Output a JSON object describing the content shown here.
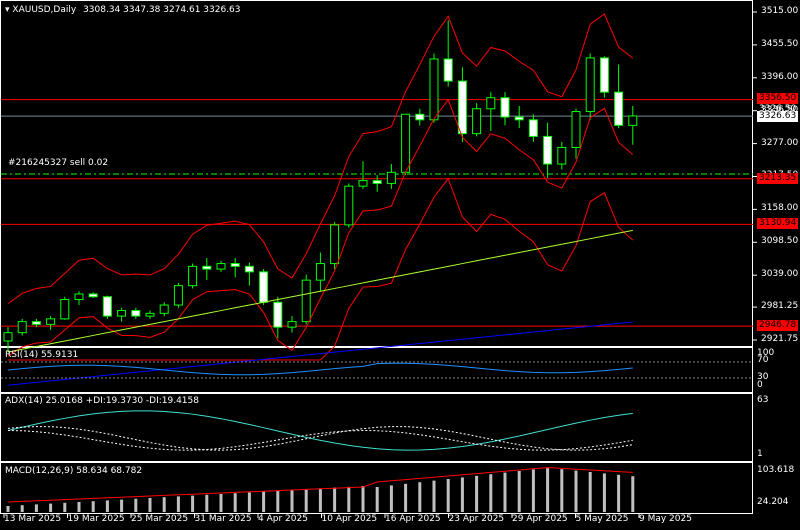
{
  "header": {
    "symbol": "XAUUSD,Daily",
    "ohlc": "3308.34 3347.38 3274.61 3326.63"
  },
  "order": {
    "label": "#216245327 sell 0.02"
  },
  "price_axis": [
    "3515.00",
    "3455.50",
    "3396.00",
    "3336.50",
    "3277.00",
    "3217.50",
    "3158.00",
    "3098.50",
    "3039.00",
    "2981.25",
    "2921.75"
  ],
  "levels": {
    "current": "3326.63",
    "r1": "3356.50",
    "r2": "3213.35",
    "r3": "3130.94",
    "r4": "2946.78",
    "current_tail": "3326.50"
  },
  "rsi": {
    "label": "RSI(14) 55.9131",
    "levels": [
      "100",
      "70",
      "30",
      "0"
    ]
  },
  "adx": {
    "label": "ADX(14) 25.0168 +DI:19.3730 -DI:19.4158",
    "top": "63",
    "bottom": "1"
  },
  "macd": {
    "label": "MACD(12,26,9) 58.634 68.782",
    "top": "103.618",
    "bottom": "24.204"
  },
  "dates": [
    "13 Mar 2025",
    "19 Mar 2025",
    "25 Mar 2025",
    "31 Mar 2025",
    "4 Apr 2025",
    "10 Apr 2025",
    "16 Apr 2025",
    "23 Apr 2025",
    "29 Apr 2025",
    "5 May 2025",
    "9 May 2025"
  ],
  "colors": {
    "up": "#00ff00",
    "down": "#ffffff",
    "band": "#ff0000",
    "ma": "#adff2f",
    "level": "#ff0000",
    "rsi": "#1e90ff",
    "adx": "#40e0d0"
  },
  "candles": [
    [
      2920,
      2945,
      2900,
      2935
    ],
    [
      2935,
      2960,
      2930,
      2955
    ],
    [
      2955,
      2960,
      2945,
      2950
    ],
    [
      2950,
      2965,
      2940,
      2960
    ],
    [
      2960,
      3000,
      2958,
      2995
    ],
    [
      2995,
      3010,
      2985,
      3005
    ],
    [
      3005,
      3008,
      2998,
      3000
    ],
    [
      3000,
      3002,
      2960,
      2965
    ],
    [
      2965,
      2980,
      2955,
      2975
    ],
    [
      2975,
      2980,
      2960,
      2965
    ],
    [
      2965,
      2975,
      2960,
      2970
    ],
    [
      2970,
      2990,
      2965,
      2985
    ],
    [
      2985,
      3025,
      2980,
      3020
    ],
    [
      3020,
      3060,
      3015,
      3055
    ],
    [
      3055,
      3070,
      3030,
      3050
    ],
    [
      3050,
      3065,
      3045,
      3060
    ],
    [
      3060,
      3070,
      3035,
      3055
    ],
    [
      3055,
      3062,
      3020,
      3045
    ],
    [
      3045,
      3050,
      2985,
      2990
    ],
    [
      2990,
      3000,
      2925,
      2945
    ],
    [
      2945,
      2965,
      2935,
      2955
    ],
    [
      2955,
      3040,
      2950,
      3030
    ],
    [
      3030,
      3080,
      3010,
      3060
    ],
    [
      3060,
      3135,
      3050,
      3130
    ],
    [
      3130,
      3205,
      3125,
      3200
    ],
    [
      3200,
      3245,
      3195,
      3210
    ],
    [
      3210,
      3220,
      3190,
      3205
    ],
    [
      3205,
      3240,
      3195,
      3225
    ],
    [
      3225,
      3330,
      3220,
      3330
    ],
    [
      3330,
      3340,
      3310,
      3320
    ],
    [
      3320,
      3440,
      3315,
      3430
    ],
    [
      3430,
      3500,
      3380,
      3390
    ],
    [
      3390,
      3415,
      3280,
      3295
    ],
    [
      3295,
      3350,
      3290,
      3340
    ],
    [
      3340,
      3370,
      3300,
      3360
    ],
    [
      3360,
      3370,
      3310,
      3325
    ],
    [
      3325,
      3345,
      3305,
      3320
    ],
    [
      3320,
      3330,
      3280,
      3290
    ],
    [
      3290,
      3315,
      3215,
      3240
    ],
    [
      3240,
      3280,
      3230,
      3270
    ],
    [
      3270,
      3340,
      3250,
      3335
    ],
    [
      3335,
      3440,
      3320,
      3432
    ],
    [
      3432,
      3435,
      3360,
      3370
    ],
    [
      3370,
      3420,
      3305,
      3310
    ],
    [
      3310,
      3345,
      3275,
      3327
    ]
  ]
}
